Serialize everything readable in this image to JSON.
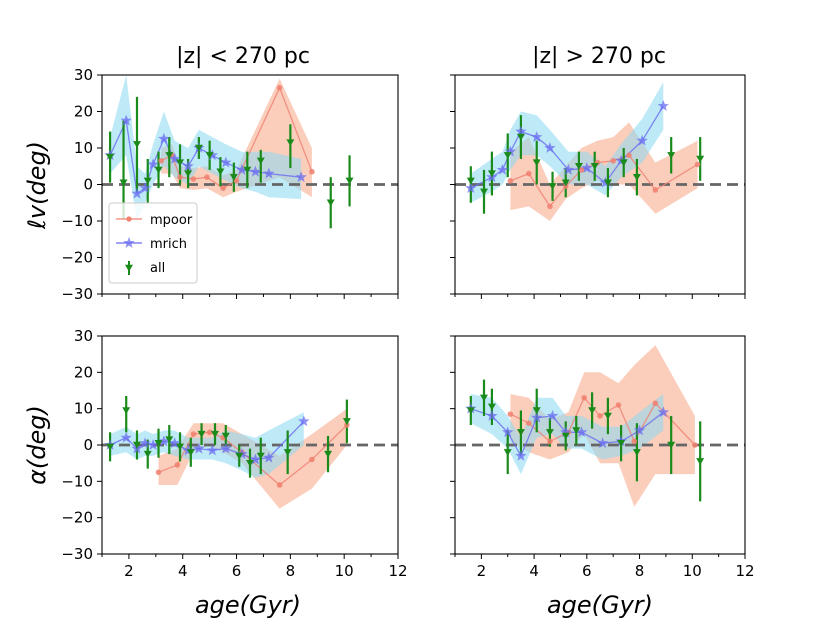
{
  "figure": {
    "panel_titles": [
      "|z| < 270 pc",
      "|z| > 270 pc"
    ],
    "ylabel_top": "ℓv(deg)",
    "ylabel_bottom": "α(deg)",
    "xlabel_left": "age(Gyr)",
    "xlabel_right": "age(Gyr)",
    "colors": {
      "mpoor": "#f08070",
      "mpoor_band": "#f7a585",
      "mrich": "#6a6cf0",
      "mrich_band": "#88d8f3",
      "all": "#1a8a1a",
      "zero_line": "#666666"
    },
    "legend": {
      "mpoor": "mpoor",
      "mrich": "mrich",
      "all": "all",
      "placement": "lower-left of top-left panel"
    }
  },
  "chart_data": [
    {
      "type": "line",
      "panel": "top-left",
      "title": "|z| < 270 pc",
      "xlabel": "",
      "ylabel": "ℓv(deg)",
      "xlim": [
        1,
        12
      ],
      "ylim": [
        -30,
        30
      ],
      "xticks": [
        2,
        4,
        6,
        8,
        10,
        12
      ],
      "yticks": [
        -30,
        -20,
        -10,
        0,
        10,
        20,
        30
      ],
      "xtick_labels_visible": false,
      "ytick_labels_visible": true,
      "zero_line": true,
      "series": [
        {
          "name": "mpoor",
          "x": [
            3.2,
            3.6,
            3.9,
            4.4,
            4.9,
            5.5,
            6.0,
            7.6,
            8.8
          ],
          "y": [
            6.5,
            8.0,
            2.0,
            1.5,
            2.0,
            -1.0,
            1.0,
            26.5,
            3.5
          ],
          "band_lo": [
            3.0,
            3.0,
            -1.0,
            -1.5,
            -1.0,
            -3.5,
            -2.0,
            2.0,
            -3.5
          ],
          "band_hi": [
            10.0,
            11.0,
            5.0,
            4.5,
            5.0,
            2.5,
            4.0,
            29.0,
            10.0
          ]
        },
        {
          "name": "mrich",
          "x": [
            1.3,
            1.9,
            2.3,
            2.6,
            2.9,
            3.3,
            3.7,
            4.2,
            4.6,
            5.1,
            5.6,
            6.2,
            6.7,
            7.2,
            8.4
          ],
          "y": [
            8.0,
            17.5,
            -2.5,
            -1.0,
            5.5,
            12.5,
            7.0,
            5.0,
            10.0,
            8.0,
            6.0,
            4.0,
            3.5,
            3.0,
            2.0
          ],
          "band_lo": [
            3.0,
            8.0,
            -10.0,
            -5.0,
            0.0,
            5.0,
            2.0,
            0.0,
            5.0,
            3.0,
            1.0,
            -1.0,
            -2.0,
            -3.5,
            -4.0
          ],
          "band_hi": [
            13.0,
            30.0,
            5.0,
            3.0,
            11.0,
            20.0,
            12.0,
            10.0,
            15.0,
            13.0,
            11.0,
            9.0,
            9.0,
            9.0,
            7.0
          ]
        },
        {
          "name": "all",
          "x": [
            1.3,
            1.8,
            2.3,
            2.7,
            3.1,
            3.5,
            3.9,
            4.2,
            4.6,
            5.0,
            5.4,
            5.9,
            6.4,
            6.9,
            8.0,
            9.5,
            10.2
          ],
          "y": [
            7.5,
            0.5,
            11.0,
            1.0,
            4.0,
            8.0,
            6.0,
            3.0,
            10.0,
            8.0,
            3.5,
            2.0,
            4.0,
            6.5,
            11.5,
            -5.0,
            1.0
          ],
          "err_lo": [
            7.0,
            10.0,
            13.0,
            6.0,
            5.0,
            6.0,
            6.0,
            4.0,
            3.0,
            4.0,
            4.0,
            4.0,
            5.0,
            6.0,
            7.0,
            7.0,
            7.0
          ],
          "err_hi": [
            7.0,
            17.0,
            13.0,
            6.0,
            5.0,
            5.0,
            5.0,
            4.0,
            3.0,
            4.0,
            4.0,
            4.0,
            5.0,
            3.0,
            5.0,
            7.0,
            7.0
          ]
        }
      ]
    },
    {
      "type": "line",
      "panel": "top-right",
      "title": "|z| > 270 pc",
      "xlabel": "",
      "ylabel": "",
      "xlim": [
        1,
        12
      ],
      "ylim": [
        -30,
        30
      ],
      "xticks": [
        2,
        4,
        6,
        8,
        10,
        12
      ],
      "yticks": [
        -30,
        -20,
        -10,
        0,
        10,
        20,
        30
      ],
      "xtick_labels_visible": false,
      "ytick_labels_visible": false,
      "zero_line": true,
      "series": [
        {
          "name": "mpoor",
          "x": [
            3.1,
            3.8,
            4.6,
            5.2,
            5.8,
            6.4,
            7.0,
            7.6,
            8.6,
            10.2
          ],
          "y": [
            1.0,
            3.0,
            -6.0,
            -0.5,
            4.0,
            6.0,
            6.5,
            8.0,
            -1.5,
            5.5
          ],
          "band_lo": [
            -7.0,
            -6.0,
            -10.0,
            -4.0,
            -1.0,
            1.0,
            0.0,
            0.0,
            -8.0,
            -1.0
          ],
          "band_hi": [
            9.0,
            13.0,
            0.0,
            5.0,
            10.0,
            12.0,
            13.0,
            17.0,
            6.0,
            12.0
          ]
        },
        {
          "name": "mrich",
          "x": [
            1.6,
            2.4,
            2.8,
            3.1,
            3.5,
            4.1,
            4.6,
            5.3,
            6.0,
            6.7,
            7.3,
            8.1,
            8.9
          ],
          "y": [
            -1.0,
            2.0,
            4.0,
            9.0,
            14.5,
            13.0,
            10.0,
            4.0,
            4.5,
            0.5,
            6.5,
            12.0,
            21.5
          ],
          "band_lo": [
            -5.0,
            -2.0,
            0.0,
            4.0,
            8.0,
            8.0,
            5.0,
            0.0,
            0.0,
            -3.0,
            2.0,
            6.0,
            15.0
          ],
          "band_hi": [
            3.0,
            7.0,
            9.0,
            15.0,
            20.0,
            19.0,
            15.0,
            9.0,
            9.0,
            5.0,
            11.0,
            18.0,
            28.0
          ]
        },
        {
          "name": "all",
          "x": [
            1.6,
            2.1,
            2.4,
            3.0,
            3.5,
            4.1,
            4.7,
            5.2,
            5.7,
            6.3,
            6.8,
            7.4,
            7.9,
            9.2,
            10.3
          ],
          "y": [
            1.0,
            -2.0,
            3.0,
            8.0,
            13.0,
            6.0,
            -0.5,
            0.5,
            5.0,
            5.0,
            0.5,
            6.0,
            2.0,
            8.0,
            7.0
          ],
          "err_lo": [
            6.0,
            6.0,
            6.0,
            6.0,
            6.0,
            6.0,
            4.0,
            4.0,
            4.0,
            4.0,
            4.0,
            4.0,
            5.0,
            5.0,
            6.0
          ],
          "err_hi": [
            4.0,
            6.0,
            6.0,
            6.0,
            6.0,
            6.0,
            4.0,
            4.0,
            4.0,
            4.0,
            4.0,
            4.0,
            5.0,
            5.0,
            6.0
          ]
        }
      ]
    },
    {
      "type": "line",
      "panel": "bottom-left",
      "title": "",
      "xlabel": "age(Gyr)",
      "ylabel": "α(deg)",
      "xlim": [
        1,
        12
      ],
      "ylim": [
        -30,
        30
      ],
      "xticks": [
        2,
        4,
        6,
        8,
        10,
        12
      ],
      "yticks": [
        -30,
        -20,
        -10,
        0,
        10,
        20,
        30
      ],
      "xtick_labels_visible": true,
      "ytick_labels_visible": true,
      "zero_line": true,
      "series": [
        {
          "name": "mpoor",
          "x": [
            3.1,
            3.8,
            4.4,
            5.0,
            5.5,
            6.2,
            7.6,
            8.8,
            10.1
          ],
          "y": [
            -7.5,
            -5.5,
            3.0,
            3.5,
            2.0,
            -2.0,
            -11.0,
            -4.0,
            5.5
          ],
          "band_lo": [
            -11.0,
            -11.0,
            -2.0,
            0.0,
            -2.0,
            -5.0,
            -17.5,
            -12.0,
            0.0
          ],
          "band_hi": [
            -3.0,
            -1.0,
            6.0,
            6.0,
            6.0,
            3.0,
            -3.0,
            3.0,
            10.0
          ]
        },
        {
          "name": "mrich",
          "x": [
            1.3,
            1.9,
            2.3,
            2.6,
            2.9,
            3.3,
            3.7,
            4.2,
            4.6,
            5.1,
            5.6,
            6.2,
            6.7,
            7.2,
            8.5
          ],
          "y": [
            0.0,
            2.0,
            -1.0,
            0.5,
            0.0,
            1.0,
            0.5,
            -1.5,
            -1.0,
            -1.5,
            -1.0,
            -2.5,
            -4.0,
            -3.5,
            6.5
          ],
          "band_lo": [
            -3.0,
            -2.0,
            -4.0,
            -3.0,
            -3.0,
            -2.0,
            -3.0,
            -4.0,
            -4.0,
            -4.0,
            -5.0,
            -7.0,
            -9.0,
            -8.0,
            0.0
          ],
          "band_hi": [
            3.0,
            5.0,
            3.0,
            4.0,
            3.0,
            4.0,
            4.0,
            2.0,
            2.0,
            2.0,
            4.0,
            3.0,
            2.0,
            4.0,
            9.0
          ]
        },
        {
          "name": "all",
          "x": [
            1.3,
            1.9,
            2.3,
            2.7,
            3.1,
            3.5,
            3.9,
            4.3,
            4.7,
            5.2,
            5.6,
            6.1,
            6.5,
            6.9,
            7.9,
            9.4,
            10.1
          ],
          "y": [
            -0.5,
            9.5,
            0.0,
            -2.5,
            0.5,
            1.5,
            -0.5,
            -2.0,
            3.0,
            3.0,
            2.5,
            -3.0,
            -5.0,
            -3.0,
            -2.0,
            -2.5,
            6.5
          ],
          "err_lo": [
            4.0,
            6.0,
            4.0,
            4.0,
            4.0,
            4.0,
            4.0,
            4.0,
            3.0,
            3.0,
            3.0,
            3.0,
            4.0,
            5.0,
            6.0,
            5.0,
            6.0
          ],
          "err_hi": [
            4.0,
            4.0,
            4.0,
            4.0,
            4.0,
            4.0,
            4.0,
            4.0,
            3.0,
            3.0,
            3.0,
            3.0,
            4.0,
            5.0,
            6.0,
            5.0,
            6.0
          ]
        }
      ]
    },
    {
      "type": "line",
      "panel": "bottom-right",
      "title": "",
      "xlabel": "age(Gyr)",
      "ylabel": "",
      "xlim": [
        1,
        12
      ],
      "ylim": [
        -30,
        30
      ],
      "xticks": [
        2,
        4,
        6,
        8,
        10,
        12
      ],
      "yticks": [
        -30,
        -20,
        -10,
        0,
        10,
        20,
        30
      ],
      "xtick_labels_visible": true,
      "ytick_labels_visible": false,
      "zero_line": true,
      "series": [
        {
          "name": "mpoor",
          "x": [
            3.1,
            3.8,
            4.6,
            5.3,
            5.9,
            6.5,
            7.2,
            7.8,
            8.6,
            10.1
          ],
          "y": [
            8.5,
            6.0,
            1.0,
            3.5,
            13.0,
            8.0,
            11.0,
            1.0,
            11.5,
            0.0
          ],
          "band_lo": [
            1.0,
            -2.0,
            -4.0,
            -2.0,
            3.0,
            -5.0,
            -5.0,
            -17.0,
            -8.0,
            -8.0
          ],
          "band_hi": [
            14.0,
            13.0,
            7.0,
            9.0,
            20.0,
            20.0,
            17.0,
            22.0,
            27.5,
            8.0
          ]
        },
        {
          "name": "mrich",
          "x": [
            1.6,
            2.4,
            3.0,
            3.5,
            4.1,
            4.7,
            5.2,
            5.8,
            6.6,
            7.3,
            8.0,
            8.9
          ],
          "y": [
            10.0,
            8.0,
            3.5,
            -3.0,
            7.5,
            8.0,
            3.5,
            3.5,
            0.5,
            1.0,
            4.0,
            9.0
          ],
          "band_lo": [
            6.0,
            3.0,
            -1.0,
            -8.0,
            2.0,
            3.0,
            -1.0,
            -1.0,
            -4.0,
            -3.0,
            -1.0,
            4.0
          ],
          "band_hi": [
            14.0,
            13.0,
            8.0,
            2.0,
            13.0,
            13.0,
            8.0,
            8.0,
            5.0,
            5.0,
            9.0,
            14.0
          ]
        },
        {
          "name": "all",
          "x": [
            1.6,
            2.1,
            2.4,
            3.0,
            3.5,
            4.1,
            4.6,
            5.2,
            5.6,
            6.2,
            6.8,
            7.3,
            7.9,
            9.2,
            10.3
          ],
          "y": [
            9.5,
            13.0,
            10.5,
            -2.0,
            3.5,
            9.5,
            3.5,
            2.5,
            4.0,
            9.5,
            8.0,
            0.5,
            -2.0,
            0.0,
            -4.5
          ],
          "err_lo": [
            4.0,
            5.0,
            5.0,
            6.0,
            6.0,
            6.0,
            4.0,
            4.0,
            4.0,
            5.0,
            5.0,
            5.0,
            8.0,
            8.0,
            11.0
          ],
          "err_hi": [
            4.0,
            5.0,
            5.0,
            6.0,
            6.0,
            6.0,
            4.0,
            4.0,
            4.0,
            5.0,
            5.0,
            5.0,
            8.0,
            8.0,
            11.0
          ]
        }
      ]
    }
  ]
}
